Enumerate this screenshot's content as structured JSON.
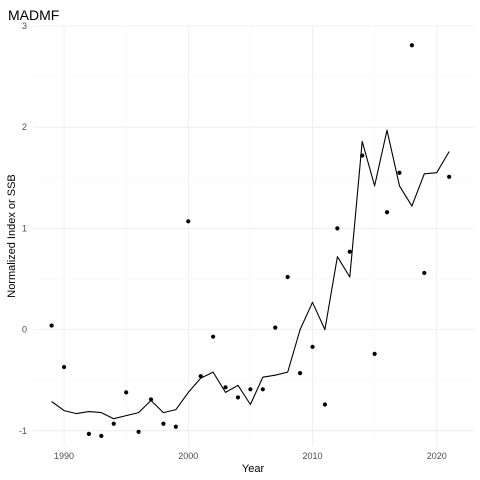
{
  "chart_data": {
    "type": "scatter+line",
    "title": "MADMF",
    "xlabel": "Year",
    "ylabel": "Normalized Index or SSB",
    "xlim": [
      1987.5,
      2023
    ],
    "ylim": [
      -1.15,
      3
    ],
    "xticks": [
      1990,
      2000,
      2010,
      2020
    ],
    "yticks": [
      -1,
      0,
      1,
      2,
      3
    ],
    "grid": true,
    "points": {
      "name": "Index",
      "x": [
        1989,
        1990,
        1992,
        1993,
        1994,
        1995,
        1996,
        1997,
        1998,
        1999,
        2000,
        2001,
        2002,
        2003,
        2004,
        2005,
        2006,
        2007,
        2008,
        2009,
        2010,
        2011,
        2012,
        2013,
        2014,
        2015,
        2016,
        2017,
        2018,
        2019,
        2021
      ],
      "y": [
        0.04,
        -0.37,
        -1.03,
        -1.05,
        -0.93,
        -0.62,
        -1.01,
        -0.69,
        -0.93,
        -0.96,
        1.07,
        -0.46,
        -0.07,
        -0.57,
        -0.67,
        -0.59,
        -0.59,
        0.02,
        0.52,
        -0.43,
        -0.17,
        -0.74,
        1.0,
        0.77,
        1.72,
        -0.24,
        1.16,
        1.55,
        2.81,
        0.56,
        1.51
      ]
    },
    "line": {
      "name": "SSB",
      "x": [
        1989,
        1990,
        1991,
        1992,
        1993,
        1994,
        1995,
        1996,
        1997,
        1998,
        1999,
        2000,
        2001,
        2002,
        2003,
        2004,
        2005,
        2006,
        2007,
        2008,
        2009,
        2010,
        2011,
        2012,
        2013,
        2014,
        2015,
        2016,
        2017,
        2018,
        2019,
        2020,
        2021
      ],
      "y": [
        -0.71,
        -0.8,
        -0.83,
        -0.81,
        -0.82,
        -0.88,
        -0.85,
        -0.82,
        -0.7,
        -0.82,
        -0.79,
        -0.62,
        -0.48,
        -0.42,
        -0.62,
        -0.55,
        -0.74,
        -0.47,
        -0.45,
        -0.42,
        0.0,
        0.27,
        0.0,
        0.72,
        0.52,
        1.86,
        1.42,
        1.97,
        1.42,
        1.22,
        1.54,
        1.55,
        1.76
      ]
    }
  }
}
